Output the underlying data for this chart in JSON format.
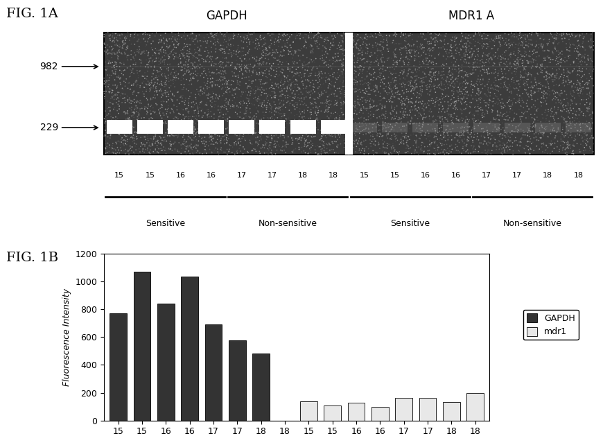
{
  "fig1a_title": "FIG. 1A",
  "fig1b_title": "FIG. 1B",
  "gel_label_gapdh": "GAPDH",
  "gel_label_mdr1a": "MDR1 A",
  "marker_982": "982",
  "marker_229": "229",
  "gel_lane_labels": [
    "15",
    "15",
    "16",
    "16",
    "17",
    "17",
    "18",
    "18",
    "15",
    "15",
    "16",
    "16",
    "17",
    "17",
    "18",
    "18"
  ],
  "gel_group_labels": [
    "Sensitive",
    "Non-sensitive",
    "Sensitive",
    "Non-sensitive"
  ],
  "gel_bg_color": "#3c3c3c",
  "bar_categories": [
    "15",
    "15",
    "16",
    "16",
    "17",
    "17",
    "18",
    "18",
    "15",
    "15",
    "16",
    "16",
    "17",
    "17",
    "18",
    "18"
  ],
  "gapdh_values": [
    770,
    1070,
    840,
    1035,
    690,
    575,
    480,
    0,
    0,
    0,
    0,
    0,
    0,
    0,
    0,
    0
  ],
  "mdr1_values": [
    0,
    0,
    0,
    0,
    0,
    0,
    0,
    0,
    140,
    110,
    130,
    100,
    165,
    165,
    135,
    200
  ],
  "gapdh_color": "#333333",
  "mdr1_color": "#e8e8e8",
  "ylabel": "Fluorescence Intensity",
  "ylim": [
    0,
    1200
  ],
  "yticks": [
    0,
    200,
    400,
    600,
    800,
    1000,
    1200
  ],
  "background_color": "#ffffff",
  "legend_gapdh": "GAPDH",
  "legend_mdr1": "mdr1"
}
